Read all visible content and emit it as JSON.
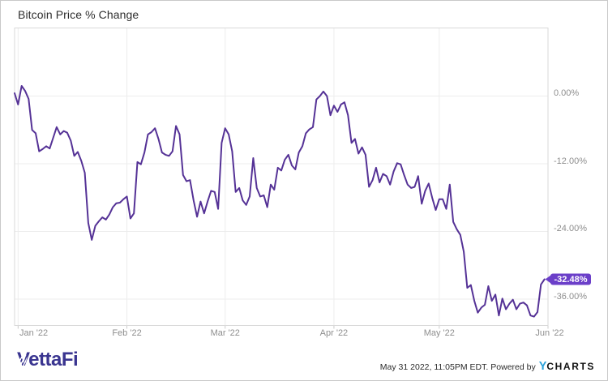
{
  "header": {
    "title": "Bitcoin Price % Change"
  },
  "chart_data": {
    "type": "line",
    "title": "Bitcoin Price % Change",
    "x_tick_labels": [
      "Jan '22",
      "Feb '22",
      "Mar '22",
      "Apr '22",
      "May '22",
      "Jun '22"
    ],
    "x_tick_day_offsets": [
      1,
      32,
      60,
      91,
      121,
      152
    ],
    "y_tick_labels": [
      "0.00%",
      "-12.00%",
      "-24.00%",
      "-36.00%"
    ],
    "y_tick_values": [
      0,
      -12,
      -24,
      -36
    ],
    "ylim": [
      -40.7,
      12.1
    ],
    "grid": true,
    "legend": "none",
    "y_axis_side": "right",
    "last_value_label": "-32.48%",
    "last_value": -32.48,
    "values": [
      0.5,
      -1.5,
      1.8,
      0.9,
      -0.5,
      -6.0,
      -6.6,
      -9.8,
      -9.4,
      -8.9,
      -9.3,
      -7.4,
      -5.5,
      -6.8,
      -6.2,
      -6.5,
      -7.9,
      -10.6,
      -9.9,
      -11.5,
      -13.6,
      -22.5,
      -25.5,
      -23.0,
      -22.2,
      -21.5,
      -21.9,
      -21.0,
      -19.7,
      -19.0,
      -18.9,
      -18.3,
      -17.8,
      -21.7,
      -20.8,
      -11.7,
      -12.1,
      -10.0,
      -6.8,
      -6.4,
      -5.7,
      -7.6,
      -10.0,
      -10.4,
      -10.6,
      -9.8,
      -5.3,
      -6.8,
      -14.0,
      -15.1,
      -14.9,
      -18.5,
      -21.4,
      -18.7,
      -20.8,
      -18.7,
      -16.8,
      -17.0,
      -20.0,
      -8.3,
      -5.7,
      -6.8,
      -9.8,
      -17.0,
      -16.3,
      -18.5,
      -19.3,
      -17.8,
      -11.0,
      -16.3,
      -17.8,
      -17.6,
      -19.7,
      -15.7,
      -16.6,
      -12.7,
      -13.2,
      -11.3,
      -10.4,
      -12.3,
      -13.0,
      -10.0,
      -8.9,
      -6.6,
      -5.9,
      -5.5,
      -0.6,
      0.0,
      0.8,
      0.0,
      -3.4,
      -1.7,
      -2.8,
      -1.5,
      -1.1,
      -3.4,
      -8.3,
      -7.6,
      -10.2,
      -9.1,
      -10.4,
      -16.1,
      -14.9,
      -12.7,
      -15.3,
      -13.8,
      -14.2,
      -15.7,
      -13.4,
      -11.9,
      -12.1,
      -14.0,
      -15.7,
      -16.3,
      -16.1,
      -14.2,
      -19.1,
      -16.8,
      -15.5,
      -18.0,
      -20.2,
      -18.3,
      -18.3,
      -20.0,
      -15.7,
      -22.3,
      -23.6,
      -24.6,
      -27.6,
      -34.0,
      -33.5,
      -36.3,
      -38.4,
      -37.5,
      -37.0,
      -33.7,
      -36.3,
      -35.2,
      -38.9,
      -35.9,
      -37.8,
      -36.8,
      -36.1,
      -37.8,
      -36.8,
      -36.6,
      -37.1,
      -38.9,
      -39.1,
      -38.3,
      -33.4,
      -32.48
    ]
  },
  "footer": {
    "brand": "VettaFi",
    "timestamp": "May 31 2022, 11:05PM EDT.",
    "powered_by": "Powered by",
    "ycharts_y": "Y",
    "ycharts_rest": "CHARTS"
  },
  "colors": {
    "line": "#553296",
    "badge": "#6b3fc9",
    "badge_text": "#ffffff",
    "grid": "#ededed",
    "plot_border": "#d9d9d9",
    "tick": "#cccccc",
    "axis_text": "#8e8e8e",
    "title_text": "#2e2e2e",
    "vettafi": "#3a3590",
    "ycharts_blue": "#2aa0d8"
  }
}
